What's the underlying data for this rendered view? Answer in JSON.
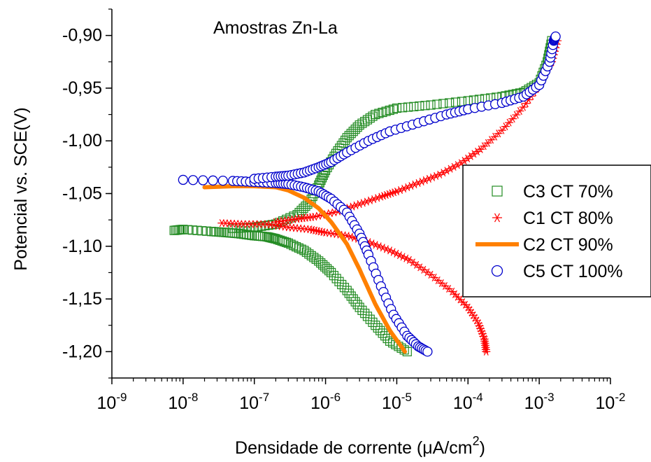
{
  "chart_data": {
    "type": "scatter",
    "annotation": "Amostras Zn-La",
    "xlabel": "Densidade de corrente (μA/cm²)",
    "xlabel_main": "Densidade de corrente (",
    "xlabel_mu": "μ",
    "xlabel_unit": "A/cm",
    "xlabel_sup": "2",
    "xlabel_close": ")",
    "ylabel": "Potencial vs. SCE(V)",
    "x_scale": "log",
    "xlim": [
      1e-09,
      0.01
    ],
    "ylim": [
      -1.225,
      -0.875
    ],
    "x_ticks": [
      {
        "value": 1e-09,
        "base": "10",
        "exp": "-9"
      },
      {
        "value": 1e-08,
        "base": "10",
        "exp": "-8"
      },
      {
        "value": 1e-07,
        "base": "10",
        "exp": "-7"
      },
      {
        "value": 1e-06,
        "base": "10",
        "exp": "-6"
      },
      {
        "value": 1e-05,
        "base": "10",
        "exp": "-5"
      },
      {
        "value": 0.0001,
        "base": "10",
        "exp": "-4"
      },
      {
        "value": 0.001,
        "base": "10",
        "exp": "-3"
      },
      {
        "value": 0.01,
        "base": "10",
        "exp": "-2"
      }
    ],
    "y_ticks": [
      {
        "value": -0.9,
        "label": "-0,90"
      },
      {
        "value": -0.95,
        "label": "-0,95"
      },
      {
        "value": -1.0,
        "label": "-1,00"
      },
      {
        "value": -1.05,
        "label": "-1,05"
      },
      {
        "value": -1.1,
        "label": "-1,10"
      },
      {
        "value": -1.15,
        "label": "-1,15"
      },
      {
        "value": -1.2,
        "label": "-1,20"
      }
    ],
    "grid": false,
    "legend_position": "right",
    "series": [
      {
        "name": "C3 CT 70%",
        "marker": "square",
        "color": "#228B22",
        "cathodic": [
          [
            7.5e-09,
            -1.085
          ],
          [
            1e-08,
            -1.084
          ],
          [
            2.5e-08,
            -1.086
          ],
          [
            4e-08,
            -1.087
          ],
          [
            6e-08,
            -1.088
          ],
          [
            1e-07,
            -1.09
          ],
          [
            1.5e-07,
            -1.091
          ],
          [
            2e-07,
            -1.093
          ],
          [
            3e-07,
            -1.097
          ],
          [
            5e-07,
            -1.104
          ],
          [
            8e-07,
            -1.114
          ],
          [
            1.2e-06,
            -1.125
          ],
          [
            2e-06,
            -1.142
          ],
          [
            3e-06,
            -1.158
          ],
          [
            5e-06,
            -1.175
          ],
          [
            8e-06,
            -1.19
          ],
          [
            1.4e-05,
            -1.2
          ]
        ],
        "anodic": [
          [
            5e-08,
            -1.083
          ],
          [
            1e-07,
            -1.082
          ],
          [
            2e-07,
            -1.079
          ],
          [
            4e-07,
            -1.07
          ],
          [
            6e-07,
            -1.058
          ],
          [
            8e-07,
            -1.042
          ],
          [
            1e-06,
            -1.028
          ],
          [
            1.4e-06,
            -1.012
          ],
          [
            2e-06,
            -0.997
          ],
          [
            3e-06,
            -0.985
          ],
          [
            5e-06,
            -0.975
          ],
          [
            1e-05,
            -0.969
          ],
          [
            3e-05,
            -0.966
          ],
          [
            0.0001,
            -0.962
          ],
          [
            0.0003,
            -0.958
          ],
          [
            0.0006,
            -0.954
          ],
          [
            0.001,
            -0.945
          ],
          [
            0.0013,
            -0.925
          ],
          [
            0.0015,
            -0.905
          ]
        ]
      },
      {
        "name": "C1 CT 80%",
        "marker": "asterisk",
        "color": "#FF0000",
        "cathodic": [
          [
            3.5e-08,
            -1.078
          ],
          [
            7e-08,
            -1.079
          ],
          [
            1.5e-07,
            -1.079
          ],
          [
            3e-07,
            -1.082
          ],
          [
            6e-07,
            -1.084
          ],
          [
            1e-06,
            -1.087
          ],
          [
            2e-06,
            -1.09
          ],
          [
            4e-06,
            -1.096
          ],
          [
            8e-06,
            -1.104
          ],
          [
            1.5e-05,
            -1.113
          ],
          [
            3e-05,
            -1.127
          ],
          [
            6e-05,
            -1.143
          ],
          [
            0.0001,
            -1.158
          ],
          [
            0.00014,
            -1.173
          ],
          [
            0.00017,
            -1.188
          ],
          [
            0.00018,
            -1.2
          ]
        ],
        "anodic": [
          [
            2e-07,
            -1.077
          ],
          [
            4e-07,
            -1.074
          ],
          [
            7e-07,
            -1.072
          ],
          [
            1.5e-06,
            -1.067
          ],
          [
            3e-06,
            -1.06
          ],
          [
            6e-06,
            -1.053
          ],
          [
            1e-05,
            -1.048
          ],
          [
            2e-05,
            -1.04
          ],
          [
            4e-05,
            -1.032
          ],
          [
            8e-05,
            -1.021
          ],
          [
            0.00015,
            -1.008
          ],
          [
            0.0003,
            -0.99
          ],
          [
            0.0006,
            -0.968
          ],
          [
            0.001,
            -0.947
          ],
          [
            0.0015,
            -0.925
          ],
          [
            0.0018,
            -0.905
          ]
        ]
      },
      {
        "name": "C2 CT 90%",
        "marker": "line",
        "color": "#FF8000",
        "cathodic": [
          [
            2e-08,
            -1.044
          ],
          [
            5e-08,
            -1.043
          ],
          [
            1e-07,
            -1.043
          ],
          [
            2e-07,
            -1.044
          ],
          [
            3e-07,
            -1.047
          ],
          [
            5e-07,
            -1.054
          ],
          [
            8e-07,
            -1.064
          ],
          [
            1.2e-06,
            -1.077
          ],
          [
            2e-06,
            -1.098
          ],
          [
            3e-06,
            -1.122
          ],
          [
            5e-06,
            -1.155
          ],
          [
            8e-06,
            -1.18
          ],
          [
            1.3e-05,
            -1.2
          ]
        ]
      },
      {
        "name": "C5 CT 100%",
        "marker": "circle",
        "color": "#0000CC",
        "cathodic": [
          [
            1e-08,
            -1.037
          ],
          [
            5e-08,
            -1.038
          ],
          [
            1e-07,
            -1.039
          ],
          [
            2e-07,
            -1.04
          ],
          [
            3e-07,
            -1.041
          ],
          [
            5e-07,
            -1.044
          ],
          [
            8e-07,
            -1.048
          ],
          [
            1.2e-06,
            -1.055
          ],
          [
            2e-06,
            -1.068
          ],
          [
            3e-06,
            -1.088
          ],
          [
            4e-06,
            -1.108
          ],
          [
            6e-06,
            -1.138
          ],
          [
            9e-06,
            -1.165
          ],
          [
            1.4e-05,
            -1.185
          ],
          [
            2e-05,
            -1.195
          ],
          [
            2.7e-05,
            -1.2
          ]
        ],
        "anodic": [
          [
            1e-07,
            -1.036
          ],
          [
            2e-07,
            -1.034
          ],
          [
            3e-07,
            -1.033
          ],
          [
            5e-07,
            -1.03
          ],
          [
            8e-07,
            -1.025
          ],
          [
            1.2e-06,
            -1.02
          ],
          [
            2e-06,
            -1.011
          ],
          [
            4e-06,
            -1.0
          ],
          [
            8e-06,
            -0.991
          ],
          [
            2e-05,
            -0.983
          ],
          [
            5e-05,
            -0.975
          ],
          [
            0.0001,
            -0.97
          ],
          [
            0.0003,
            -0.964
          ],
          [
            0.0006,
            -0.958
          ],
          [
            0.001,
            -0.947
          ],
          [
            0.0014,
            -0.925
          ],
          [
            0.0016,
            -0.905
          ],
          [
            0.0017,
            -0.901
          ]
        ]
      }
    ]
  }
}
